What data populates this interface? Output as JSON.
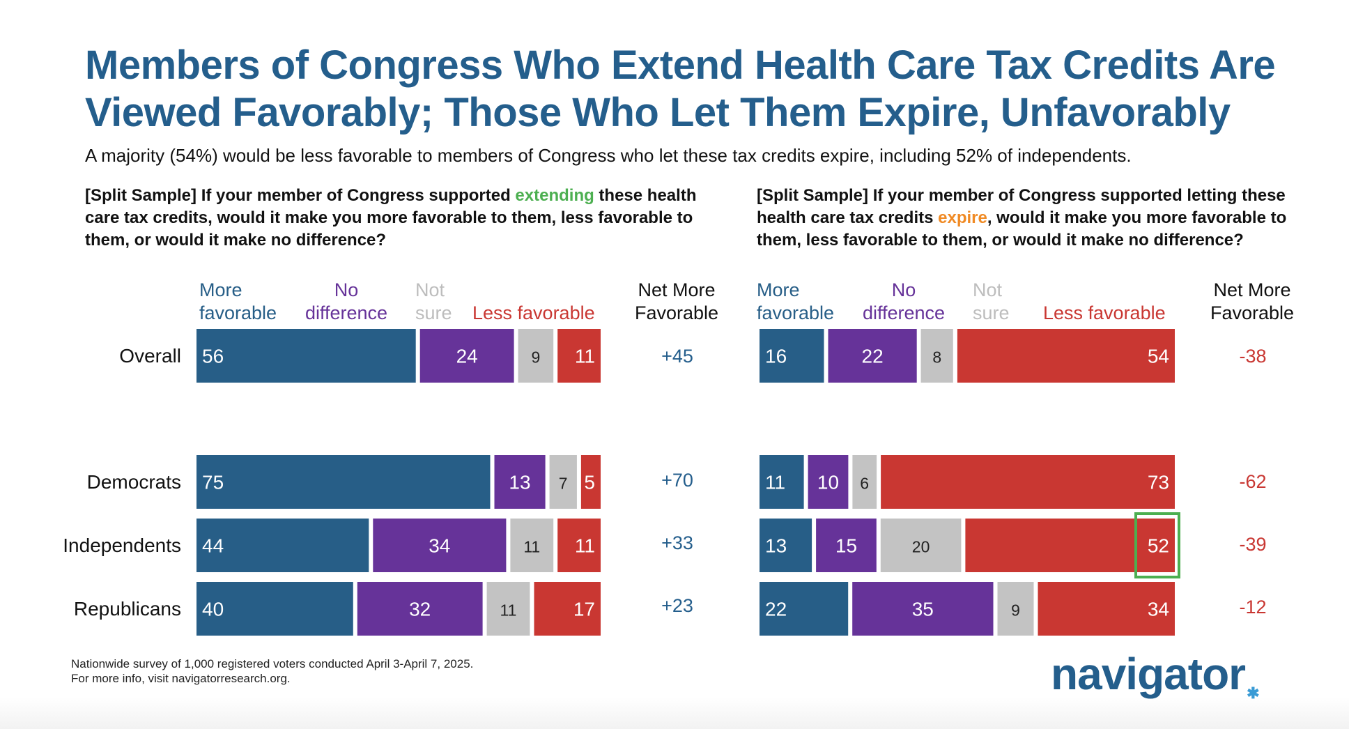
{
  "title": "Members of Congress Who Extend Health Care Tax Credits Are Viewed Favorably; Those Who Let Them Expire, Unfavorably",
  "subtitle": "A majority (54%) would be less favorable to members of Congress who let these tax credits expire, including 52% of independents.",
  "left_question": {
    "before": "[Split Sample] If your member of Congress supported ",
    "highlight": "extending",
    "after": " these health care tax credits, would it make you more favorable to them, less favorable to them, or would it make no difference?"
  },
  "right_question": {
    "before": "[Split Sample] If your member of Congress supported letting these health care tax credits ",
    "highlight": "expire",
    "after": ", would it make you more favorable to them, less favorable to them, or would it make no difference?"
  },
  "headers": {
    "more": [
      "More",
      "favorable"
    ],
    "nodiff": [
      "No",
      "difference"
    ],
    "notsure": [
      "Not",
      "sure"
    ],
    "less": "Less favorable",
    "net": [
      "Net More",
      "Favorable"
    ]
  },
  "colors": {
    "more": "#275e87",
    "nodiff": "#663399",
    "notsure": "#c3c3c3",
    "less": "#c93732",
    "title": "#245e8c",
    "highlight_box": "#4caf50"
  },
  "footnote": [
    "Nationwide survey of 1,000 registered voters conducted April 3-April 7, 2025.",
    "For more info, visit navigatorresearch.org."
  ],
  "logo": "navigator",
  "chart_data": [
    {
      "type": "bar",
      "orientation": "horizontal",
      "stacked": true,
      "title": "[Split Sample] If your member of Congress supported extending these health care tax credits, would it make you more favorable to them, less favorable to them, or would it make no difference?",
      "categories": [
        "Overall",
        "Democrats",
        "Independents",
        "Republicans"
      ],
      "series": [
        {
          "name": "More favorable",
          "values": [
            56,
            75,
            44,
            40
          ]
        },
        {
          "name": "No difference",
          "values": [
            24,
            13,
            34,
            32
          ]
        },
        {
          "name": "Not sure",
          "values": [
            9,
            7,
            11,
            11
          ]
        },
        {
          "name": "Less favorable",
          "values": [
            11,
            5,
            11,
            17
          ]
        }
      ],
      "net": [
        "+45",
        "+70",
        "+33",
        "+23"
      ],
      "net_label": "Net More Favorable"
    },
    {
      "type": "bar",
      "orientation": "horizontal",
      "stacked": true,
      "title": "[Split Sample] If your member of Congress supported letting these health care tax credits expire, would it make you more favorable to them, less favorable to them, or would it make no difference?",
      "categories": [
        "Overall",
        "Democrats",
        "Independents",
        "Republicans"
      ],
      "series": [
        {
          "name": "More favorable",
          "values": [
            16,
            11,
            13,
            22
          ]
        },
        {
          "name": "No difference",
          "values": [
            22,
            10,
            15,
            35
          ]
        },
        {
          "name": "Not sure",
          "values": [
            8,
            6,
            20,
            9
          ]
        },
        {
          "name": "Less favorable",
          "values": [
            54,
            73,
            52,
            34
          ]
        }
      ],
      "net": [
        "-38",
        "-62",
        "-39",
        "-12"
      ],
      "net_label": "Net More Favorable",
      "highlighted": {
        "category": "Independents",
        "series": "Less favorable",
        "value": 52
      }
    }
  ]
}
